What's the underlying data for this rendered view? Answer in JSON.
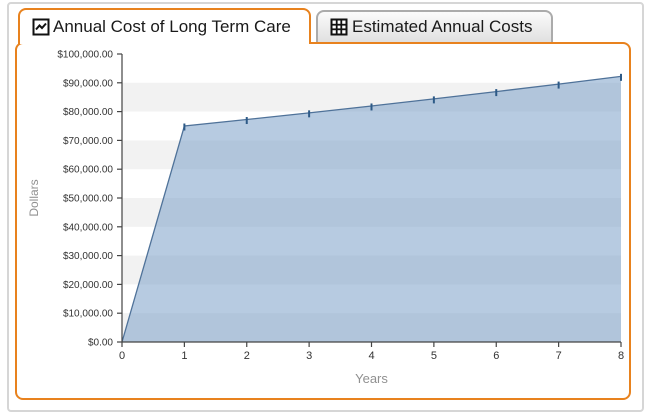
{
  "tabs": [
    {
      "label": "Annual Cost of Long Term Care",
      "icon": "line-chart-icon",
      "active": true
    },
    {
      "label": "Estimated Annual Costs",
      "icon": "table-icon",
      "active": false
    }
  ],
  "colors": {
    "accent_orange": "#e8821e",
    "band_gray": "#f2f2f2",
    "area_fill": "rgba(123,161,201,0.55)",
    "line_stroke": "#4f7299",
    "marker": "#2d5a87",
    "axis_line": "#444444",
    "tick_text": "#333333",
    "axis_title_text": "#909090",
    "frame_gray": "#d6d6d6",
    "inactive_tab_border": "#ababab"
  },
  "chart_data": {
    "type": "area",
    "title": "",
    "xlabel": "Years",
    "ylabel": "Dollars",
    "x": [
      0,
      1,
      2,
      3,
      4,
      5,
      6,
      7,
      8
    ],
    "values": [
      0,
      75000,
      77250,
      79568,
      81954,
      84413,
      86946,
      89554,
      92240
    ],
    "series_name": "Annual Cost of Long Term Care",
    "xlim": [
      0,
      8
    ],
    "ylim": [
      0,
      100000
    ],
    "x_tick_labels": [
      "0",
      "1",
      "2",
      "3",
      "4",
      "5",
      "6",
      "7",
      "8"
    ],
    "y_tick_labels_top_to_bottom": [
      "$100,000.00",
      "$90,000.00",
      "$80,000.00",
      "$70,000.00",
      "$60,000.00",
      "$50,000.00",
      "$40,000.00",
      "$30,000.00",
      "$20,000.00",
      "$10,000.00",
      "$0.00"
    ],
    "grid": "alternating-horizontal-bands",
    "legend": "none",
    "markers": "short-vertical-dash-at-each-year"
  }
}
